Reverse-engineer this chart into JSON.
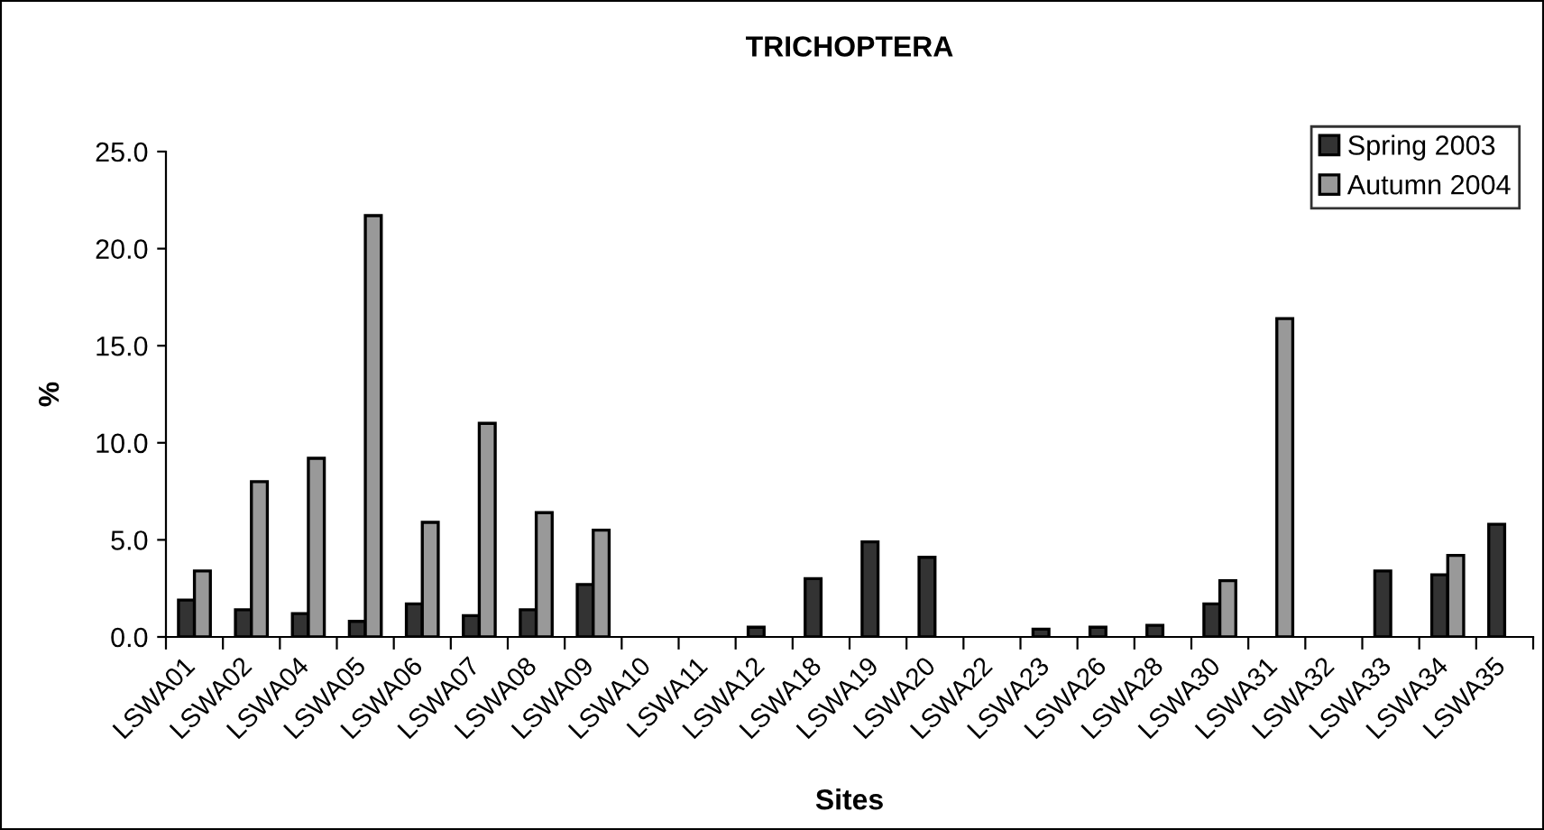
{
  "chart_data": {
    "type": "bar",
    "title": "TRICHOPTERA",
    "xlabel": "Sites",
    "ylabel": "%",
    "categories": [
      "LSWA01",
      "LSWA02",
      "LSWA04",
      "LSWA05",
      "LSWA06",
      "LSWA07",
      "LSWA08",
      "LSWA09",
      "LSWA10",
      "LSWA11",
      "LSWA12",
      "LSWA18",
      "LSWA19",
      "LSWA20",
      "LSWA22",
      "LSWA23",
      "LSWA26",
      "LSWA28",
      "LSWA30",
      "LSWA31",
      "LSWA32",
      "LSWA33",
      "LSWA34",
      "LSWA35"
    ],
    "series": [
      {
        "name": "Spring 2003",
        "color": "#333333",
        "values": [
          1.9,
          1.4,
          1.2,
          0.8,
          1.7,
          1.1,
          1.4,
          2.7,
          null,
          null,
          0.5,
          3.0,
          4.9,
          4.1,
          null,
          0.4,
          0.5,
          0.6,
          1.7,
          null,
          null,
          3.4,
          3.2,
          5.8
        ]
      },
      {
        "name": "Autumn 2004",
        "color": "#999999",
        "values": [
          3.4,
          8.0,
          9.2,
          21.7,
          5.9,
          11.0,
          6.4,
          5.5,
          null,
          null,
          null,
          null,
          null,
          null,
          null,
          null,
          null,
          null,
          2.9,
          16.4,
          null,
          null,
          4.2,
          null
        ]
      }
    ],
    "ylim": [
      0,
      25
    ],
    "yticks": [
      {
        "value": 0,
        "label": "0.0"
      },
      {
        "value": 5,
        "label": "5.0"
      },
      {
        "value": 10,
        "label": "10.0"
      },
      {
        "value": 15,
        "label": "15.0"
      },
      {
        "value": 20,
        "label": "20.0"
      },
      {
        "value": 25,
        "label": "25.0"
      }
    ],
    "grid": false,
    "legend": "top right"
  }
}
